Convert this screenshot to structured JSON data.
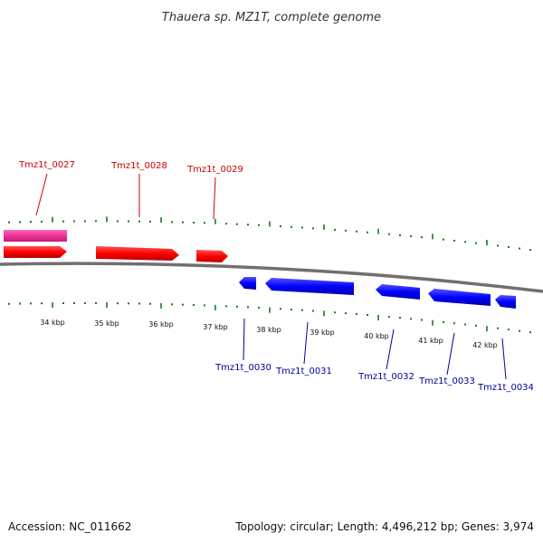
{
  "title": "Thauera sp. MZ1T, complete genome",
  "footer": {
    "accession": "Accession: NC_011662",
    "summary": "Topology: circular; Length: 4,496,212 bp; Genes: 3,974"
  },
  "colors": {
    "forward_gene": "#ff0000",
    "reverse_gene": "#0000ff",
    "forward_label": "#cc0000",
    "reverse_label": "#000099",
    "tick": "#1a7a1a",
    "backbone": "#707070",
    "feature_pink": "#ee3399"
  },
  "scale_labels": [
    "34 kbp",
    "35 kbp",
    "36 kbp",
    "37 kbp",
    "38 kbp",
    "39 kbp",
    "40 kbp",
    "41 kbp",
    "42 kbp"
  ],
  "forward_genes": [
    "Tmz1t_0027",
    "Tmz1t_0028",
    "Tmz1t_0029"
  ],
  "reverse_genes": [
    "Tmz1t_0030",
    "Tmz1t_0031",
    "Tmz1t_0032",
    "Tmz1t_0033",
    "Tmz1t_0034"
  ]
}
